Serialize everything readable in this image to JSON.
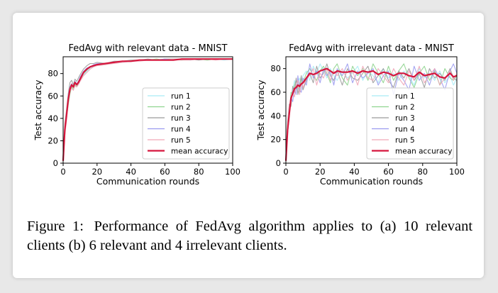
{
  "caption": {
    "label": "Figure 1:",
    "text": "Performance of FedAvg algorithm applies to (a) 10 relevant clients (b) 6 relevant and 4 irrelevant clients."
  },
  "chart_data": [
    {
      "type": "line",
      "title": "FedAvg with relevant data - MNIST",
      "xlabel": "Communication rounds",
      "ylabel": "Test accuracy",
      "xlim": [
        0,
        100
      ],
      "ylim": [
        0,
        95
      ],
      "xticks": [
        0,
        20,
        40,
        60,
        80,
        100
      ],
      "yticks": [
        0,
        20,
        40,
        60,
        80
      ],
      "grid": false,
      "legend": "lower-right",
      "x": [
        0,
        1,
        2,
        3,
        4,
        5,
        6,
        7,
        8,
        9,
        10,
        12,
        14,
        16,
        18,
        20,
        25,
        30,
        35,
        40,
        45,
        50,
        55,
        60,
        65,
        70,
        75,
        80,
        85,
        90,
        95,
        100
      ],
      "series": [
        {
          "name": "run 1",
          "color": "#a8ecf5",
          "values": [
            2,
            32,
            44,
            58,
            66,
            70,
            69,
            72,
            70,
            71,
            75,
            79,
            82,
            85,
            86,
            88,
            89,
            90,
            90,
            91,
            92,
            92,
            92,
            92,
            92,
            93,
            92,
            93,
            93,
            93,
            92,
            93
          ]
        },
        {
          "name": "run 2",
          "color": "#8fd48f",
          "values": [
            2,
            28,
            40,
            52,
            62,
            68,
            66,
            70,
            68,
            72,
            74,
            80,
            83,
            86,
            87,
            88,
            88,
            90,
            91,
            91,
            92,
            92,
            93,
            92,
            93,
            92,
            93,
            93,
            92,
            93,
            93,
            93
          ]
        },
        {
          "name": "run 3",
          "color": "#9a9a9a",
          "values": [
            2,
            35,
            48,
            62,
            72,
            74,
            70,
            75,
            73,
            76,
            79,
            84,
            87,
            89,
            89,
            90,
            89,
            91,
            91,
            92,
            92,
            93,
            92,
            93,
            93,
            93,
            93,
            92,
            93,
            93,
            93,
            93
          ]
        },
        {
          "name": "run 4",
          "color": "#9b9bf0",
          "values": [
            2,
            30,
            45,
            60,
            68,
            71,
            68,
            73,
            71,
            73,
            77,
            82,
            85,
            86,
            88,
            89,
            89,
            90,
            91,
            91,
            92,
            92,
            92,
            93,
            92,
            93,
            93,
            93,
            93,
            93,
            93,
            93
          ]
        },
        {
          "name": "run 5",
          "color": "#f0a6b8",
          "values": [
            2,
            25,
            38,
            55,
            64,
            67,
            65,
            69,
            68,
            70,
            73,
            78,
            81,
            84,
            86,
            87,
            88,
            89,
            90,
            91,
            91,
            92,
            92,
            92,
            93,
            92,
            92,
            93,
            93,
            92,
            93,
            93
          ]
        },
        {
          "name": "mean accuracy",
          "color": "#d6163d",
          "values": [
            2,
            30,
            43,
            57,
            66,
            70,
            68,
            72,
            70,
            72,
            75,
            81,
            84,
            86,
            87,
            88,
            89,
            90,
            91,
            91,
            92,
            92,
            92,
            92,
            92,
            93,
            93,
            93,
            93,
            93,
            93,
            93
          ]
        }
      ]
    },
    {
      "type": "line",
      "title": "FedAvg with irrelevant data - MNIST",
      "xlabel": "Communication rounds",
      "ylabel": "Test accuracy",
      "xlim": [
        0,
        100
      ],
      "ylim": [
        0,
        90
      ],
      "xticks": [
        0,
        20,
        40,
        60,
        80,
        100
      ],
      "yticks": [
        0,
        20,
        40,
        60,
        80
      ],
      "grid": false,
      "legend": "lower-right",
      "x": [
        0,
        1,
        2,
        3,
        4,
        5,
        6,
        7,
        8,
        9,
        10,
        12,
        14,
        16,
        18,
        20,
        22,
        24,
        26,
        28,
        30,
        33,
        36,
        39,
        42,
        45,
        48,
        51,
        54,
        57,
        60,
        63,
        66,
        69,
        72,
        75,
        78,
        81,
        84,
        87,
        90,
        93,
        96,
        98,
        100
      ],
      "series": [
        {
          "name": "run 1",
          "color": "#a8ecf5",
          "values": [
            2,
            30,
            45,
            55,
            62,
            70,
            62,
            68,
            72,
            66,
            74,
            78,
            70,
            82,
            76,
            84,
            78,
            72,
            80,
            74,
            70,
            78,
            72,
            76,
            82,
            70,
            78,
            74,
            68,
            80,
            72,
            76,
            70,
            78,
            74,
            66,
            80,
            72,
            76,
            70,
            78,
            68,
            74,
            66,
            72
          ]
        },
        {
          "name": "run 2",
          "color": "#8fd48f",
          "values": [
            2,
            25,
            40,
            60,
            58,
            66,
            70,
            64,
            60,
            72,
            68,
            76,
            80,
            74,
            70,
            78,
            82,
            76,
            68,
            80,
            84,
            72,
            66,
            82,
            74,
            80,
            70,
            84,
            76,
            68,
            82,
            70,
            78,
            84,
            72,
            64,
            76,
            82,
            70,
            78,
            66,
            80,
            72,
            70,
            74
          ]
        },
        {
          "name": "run 3",
          "color": "#9a9a9a",
          "values": [
            2,
            35,
            50,
            48,
            65,
            60,
            72,
            58,
            66,
            74,
            62,
            70,
            76,
            68,
            82,
            72,
            76,
            84,
            74,
            70,
            78,
            66,
            80,
            72,
            70,
            76,
            82,
            68,
            74,
            80,
            70,
            64,
            78,
            72,
            80,
            70,
            76,
            64,
            80,
            72,
            76,
            70,
            80,
            72,
            70
          ]
        },
        {
          "name": "run 4",
          "color": "#9b9bf0",
          "values": [
            2,
            28,
            42,
            56,
            52,
            64,
            58,
            74,
            62,
            60,
            72,
            66,
            84,
            72,
            78,
            68,
            80,
            74,
            78,
            66,
            80,
            74,
            84,
            68,
            78,
            72,
            76,
            80,
            66,
            74,
            78,
            58,
            76,
            70,
            62,
            82,
            70,
            76,
            66,
            80,
            72,
            62,
            78,
            84,
            76
          ]
        },
        {
          "name": "run 5",
          "color": "#f0a6b8",
          "values": [
            2,
            32,
            48,
            52,
            60,
            56,
            66,
            70,
            58,
            68,
            64,
            72,
            74,
            80,
            66,
            76,
            72,
            80,
            70,
            78,
            74,
            80,
            70,
            78,
            66,
            82,
            72,
            70,
            80,
            74,
            68,
            80,
            72,
            66,
            78,
            70,
            82,
            68,
            74,
            80,
            66,
            72,
            78,
            70,
            76
          ]
        },
        {
          "name": "mean accuracy",
          "color": "#d6163d",
          "values": [
            2,
            28,
            42,
            55,
            59,
            63,
            64,
            66,
            65,
            67,
            68,
            72,
            76,
            75,
            76,
            78,
            79,
            80,
            78,
            76,
            78,
            77,
            77,
            78,
            76,
            78,
            77,
            78,
            75,
            77,
            76,
            74,
            76,
            76,
            74,
            73,
            77,
            74,
            75,
            76,
            73,
            72,
            76,
            73,
            74
          ]
        }
      ]
    }
  ]
}
